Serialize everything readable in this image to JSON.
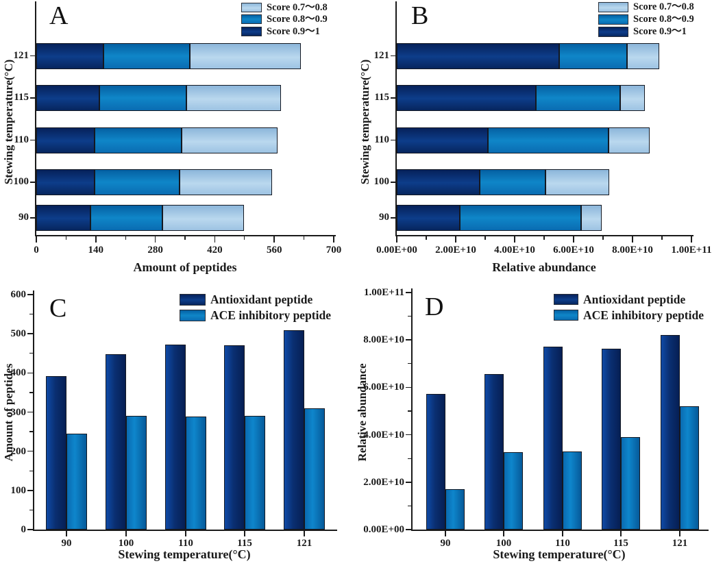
{
  "figure": {
    "background": "#ffffff",
    "panel_letters": [
      "A",
      "B",
      "C",
      "D"
    ],
    "colors": {
      "dark_blue": "#0a2d6e",
      "mid_blue": "#0b7ac0",
      "light_blue": "#a9cbe6",
      "bar_border": "#141821",
      "axis": "#1a1a1a",
      "text": "#1a1a1a"
    }
  },
  "chart_data": [
    {
      "panel": "A",
      "type": "bar",
      "orientation": "horizontal",
      "stacked": true,
      "categories": [
        "90",
        "100",
        "110",
        "115",
        "121"
      ],
      "series": [
        {
          "name": "Score 0.9～1",
          "color_key": "dark_blue",
          "values": [
            128,
            137,
            137,
            148,
            158
          ]
        },
        {
          "name": "Score 0.8～0.9",
          "color_key": "mid_blue",
          "values": [
            168,
            200,
            205,
            205,
            203
          ]
        },
        {
          "name": "Score 0.7～0.8",
          "color_key": "light_blue",
          "values": [
            193,
            218,
            226,
            223,
            262
          ]
        }
      ],
      "totals": [
        489,
        555,
        568,
        576,
        623
      ],
      "xlabel": "Amount of peptides",
      "ylabel": "Stewing temperature(°C)",
      "xlim": [
        0,
        700
      ],
      "xticks": {
        "values": [
          0,
          140,
          280,
          420,
          560,
          700
        ],
        "labels": [
          "0",
          "140",
          "280",
          "420",
          "560",
          "700"
        ]
      },
      "legend": {
        "position": "top-right",
        "entries": [
          {
            "label": "Score 0.7～0.8",
            "color_key": "light_blue"
          },
          {
            "label": "Score 0.8～0.9",
            "color_key": "mid_blue"
          },
          {
            "label": "Score 0.9～1",
            "color_key": "dark_blue"
          }
        ]
      }
    },
    {
      "panel": "B",
      "type": "bar",
      "orientation": "horizontal",
      "stacked": true,
      "categories": [
        "90",
        "100",
        "110",
        "115",
        "121"
      ],
      "series": [
        {
          "name": "Score 0.9～1",
          "color_key": "dark_blue",
          "values": [
            21300000000.0,
            28100000000.0,
            31000000000.0,
            47200000000.0,
            55000000000.0
          ]
        },
        {
          "name": "Score 0.8～0.9",
          "color_key": "mid_blue",
          "values": [
            41300000000.0,
            22400000000.0,
            40800000000.0,
            28500000000.0,
            23100000000.0
          ]
        },
        {
          "name": "Score 0.7～0.8",
          "color_key": "light_blue",
          "values": [
            7000000000.0,
            21600000000.0,
            13900000000.0,
            8400000000.0,
            11000000000.0
          ]
        }
      ],
      "totals": [
        69600000000.0,
        72100000000.0,
        85700000000.0,
        84100000000.0,
        89100000000.0
      ],
      "xlabel": "Relative abundance",
      "ylabel": "Stewing temperature(°C)",
      "xlim": [
        0,
        100000000000.0
      ],
      "xticks": {
        "values": [
          0,
          20000000000.0,
          40000000000.0,
          60000000000.0,
          80000000000.0,
          100000000000.0
        ],
        "labels": [
          "0.00E+00",
          "2.00E+10",
          "4.00E+10",
          "6.00E+10",
          "8.00E+10",
          "1.00E+11"
        ]
      },
      "legend": {
        "position": "top-right",
        "entries": [
          {
            "label": "Score 0.7～0.8",
            "color_key": "light_blue"
          },
          {
            "label": "Score 0.8～0.9",
            "color_key": "mid_blue"
          },
          {
            "label": "Score 0.9～1",
            "color_key": "dark_blue"
          }
        ]
      }
    },
    {
      "panel": "C",
      "type": "bar",
      "orientation": "vertical",
      "stacked": false,
      "categories": [
        "90",
        "100",
        "110",
        "115",
        "121"
      ],
      "series": [
        {
          "name": "Antioxidant peptide",
          "color_key": "dark_blue",
          "values": [
            392,
            447,
            473,
            470,
            509
          ]
        },
        {
          "name": "ACE inhibitory peptide",
          "color_key": "mid_blue",
          "values": [
            245,
            291,
            289,
            291,
            309
          ]
        }
      ],
      "xlabel": "Stewing temperature(°C)",
      "ylabel": "Amount of peptides",
      "ylim": [
        0,
        600
      ],
      "yticks": {
        "values": [
          0,
          100,
          200,
          300,
          400,
          500,
          600
        ],
        "labels": [
          "0",
          "100",
          "200",
          "300",
          "400",
          "500",
          "600"
        ]
      },
      "legend": {
        "position": "top-right",
        "entries": [
          {
            "label": "Antioxidant peptide",
            "color_key": "dark_blue"
          },
          {
            "label": "ACE inhibitory peptide",
            "color_key": "mid_blue"
          }
        ]
      }
    },
    {
      "panel": "D",
      "type": "bar",
      "orientation": "vertical",
      "stacked": false,
      "categories": [
        "90",
        "100",
        "110",
        "115",
        "121"
      ],
      "series": [
        {
          "name": "Antioxidant peptide",
          "color_key": "dark_blue",
          "values": [
            57200000000.0,
            65700000000.0,
            77200000000.0,
            76400000000.0,
            82200000000.0
          ]
        },
        {
          "name": "ACE inhibitory peptide",
          "color_key": "mid_blue",
          "values": [
            17000000000.0,
            32700000000.0,
            32900000000.0,
            39100000000.0,
            51900000000.0
          ]
        }
      ],
      "xlabel": "Stewing temperature(°C)",
      "ylabel": "Relative abundance",
      "ylim": [
        0,
        100000000000.0
      ],
      "yticks": {
        "values": [
          0,
          20000000000.0,
          40000000000.0,
          60000000000.0,
          80000000000.0,
          100000000000.0
        ],
        "labels": [
          "0.00E+00",
          "2.00E+10",
          "4.00E+10",
          "6.00E+10",
          "8.00E+10",
          "1.00E+11"
        ]
      },
      "legend": {
        "position": "top-right",
        "entries": [
          {
            "label": "Antioxidant peptide",
            "color_key": "dark_blue"
          },
          {
            "label": "ACE inhibitory peptide",
            "color_key": "mid_blue"
          }
        ]
      }
    }
  ]
}
